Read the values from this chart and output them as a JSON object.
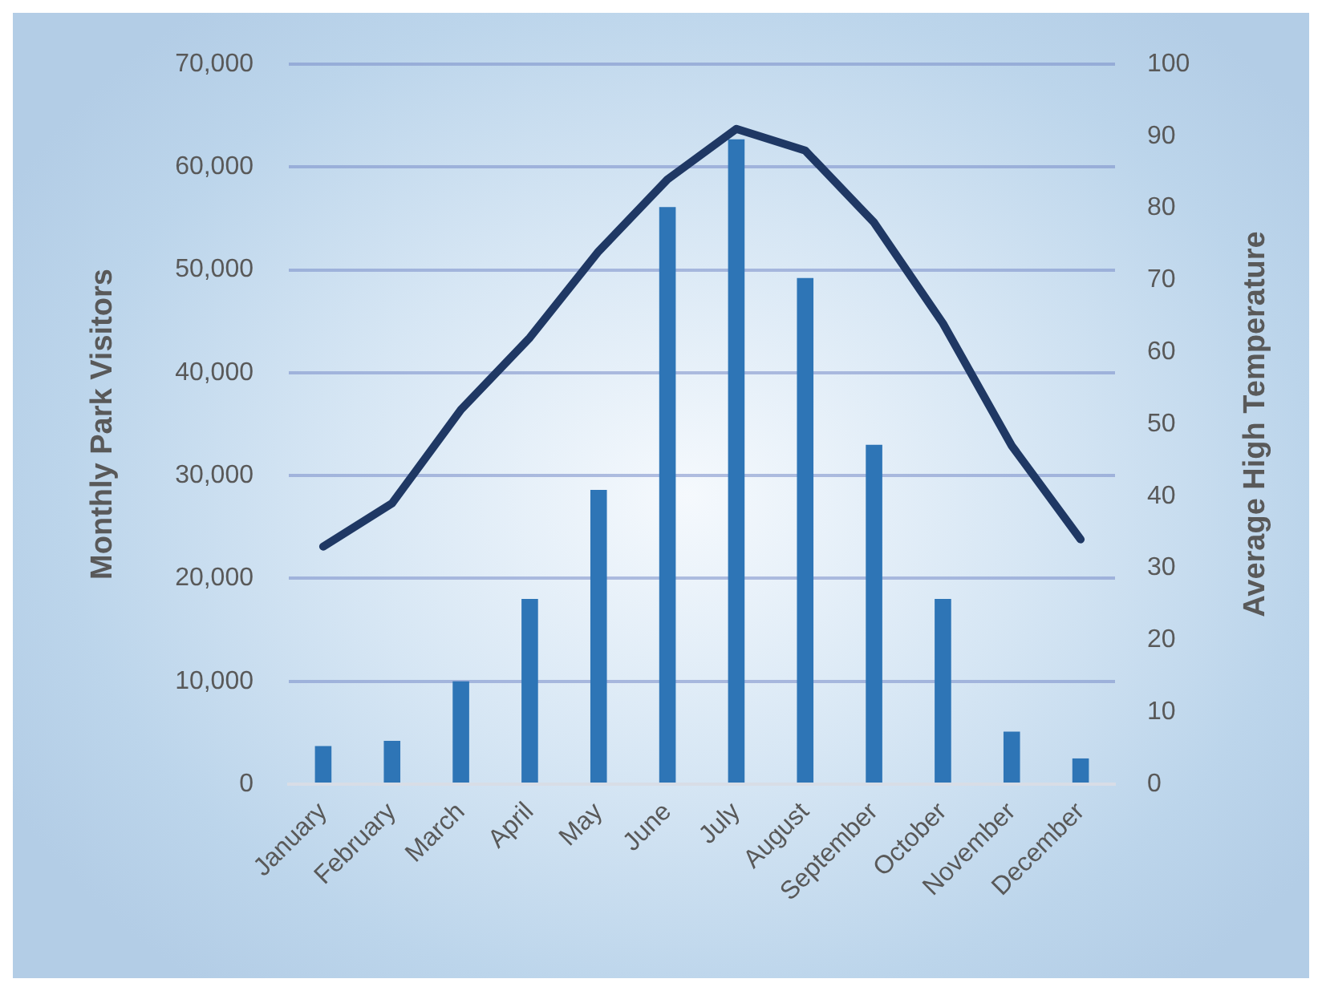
{
  "chart_data": {
    "type": "bar",
    "categories": [
      "January",
      "February",
      "March",
      "April",
      "May",
      "June",
      "July",
      "August",
      "September",
      "October",
      "November",
      "December"
    ],
    "series": [
      {
        "color": "#2e75b6",
        "values": [
          3700,
          4200,
          10000,
          18000,
          28600,
          56100,
          62700,
          49200,
          33000,
          18000,
          5100,
          2500
        ]
      },
      {
        "type": "line",
        "axis": "y2",
        "color": "#1f3864",
        "values": [
          33,
          39,
          52,
          62,
          74,
          84,
          91,
          88,
          78,
          64,
          47,
          34
        ]
      }
    ],
    "ylabel": "Monthly Park Visitors",
    "y2label": "Average High Temperature",
    "ylim": [
      0,
      70000
    ],
    "yticks": [
      0,
      {
        "value": 10000,
        "label": "10,000"
      },
      {
        "value": 20000,
        "label": "20,000"
      },
      {
        "value": 30000,
        "label": "30,000"
      },
      {
        "value": 40000,
        "label": "40,000"
      },
      {
        "value": 50000,
        "label": "50,000"
      },
      {
        "value": 60000,
        "label": "60,000"
      },
      {
        "value": 70000,
        "label": "70,000"
      }
    ],
    "y2lim": [
      0,
      100
    ],
    "y2ticks": [
      0,
      10,
      20,
      30,
      40,
      50,
      60,
      70,
      80,
      90,
      100
    ],
    "grid": "y",
    "marker": "none",
    "line_style": "solid"
  }
}
